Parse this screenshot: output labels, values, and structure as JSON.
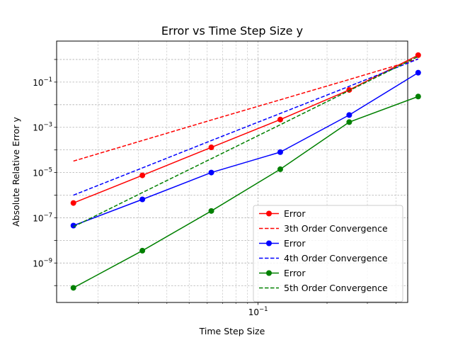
{
  "chart_data": {
    "type": "line",
    "title": "Error vs Time Step Size y",
    "xlabel": "Time Step Size",
    "ylabel": "Absolute Relative Error y",
    "xscale": "log",
    "yscale": "log",
    "xlim": [
      0.0132,
      0.45
    ],
    "ylim": [
      1.8e-11,
      6.5
    ],
    "grid": true,
    "legend_position": "lower-right",
    "x_tick_labels": [
      {
        "value": 0.1,
        "base": "10",
        "exp": "−1"
      }
    ],
    "y_tick_labels": [
      {
        "value": 0.1,
        "base": "10",
        "exp": "−1"
      },
      {
        "value": 0.001,
        "base": "10",
        "exp": "−3"
      },
      {
        "value": 1e-05,
        "base": "10",
        "exp": "−5"
      },
      {
        "value": 1e-07,
        "base": "10",
        "exp": "−7"
      },
      {
        "value": 1e-09,
        "base": "10",
        "exp": "−9"
      }
    ],
    "x": [
      0.015625,
      0.03125,
      0.0625,
      0.125,
      0.25,
      0.5
    ],
    "series": [
      {
        "name": "Error",
        "color": "#ff0000",
        "style": "solid-marker",
        "values": [
          4.5e-07,
          7.5e-06,
          0.00013,
          0.0022,
          0.045,
          1.55
        ]
      },
      {
        "name": "3th Order Convergence",
        "color": "#ff0000",
        "style": "dashed",
        "values": [
          3.2e-05,
          0.00026,
          0.0021,
          0.0165,
          0.13,
          1.05
        ]
      },
      {
        "name": "Error",
        "color": "#0000ff",
        "style": "solid-marker",
        "values": [
          4.5e-08,
          6.5e-07,
          1e-05,
          8e-05,
          0.0035,
          0.26
        ]
      },
      {
        "name": "4th Order Convergence",
        "color": "#0000ff",
        "style": "dashed",
        "values": [
          1e-06,
          1.6e-05,
          0.00026,
          0.0041,
          0.065,
          1.05
        ]
      },
      {
        "name": "Error",
        "color": "#008000",
        "style": "solid-marker",
        "values": [
          8e-11,
          3.5e-09,
          2e-07,
          1.4e-05,
          0.0017,
          0.023
        ]
      },
      {
        "name": "5th Order Convergence",
        "color": "#008000",
        "style": "dashed",
        "values": [
          4e-08,
          1.3e-06,
          4.1e-05,
          0.0013,
          0.042,
          1.35
        ]
      }
    ]
  }
}
